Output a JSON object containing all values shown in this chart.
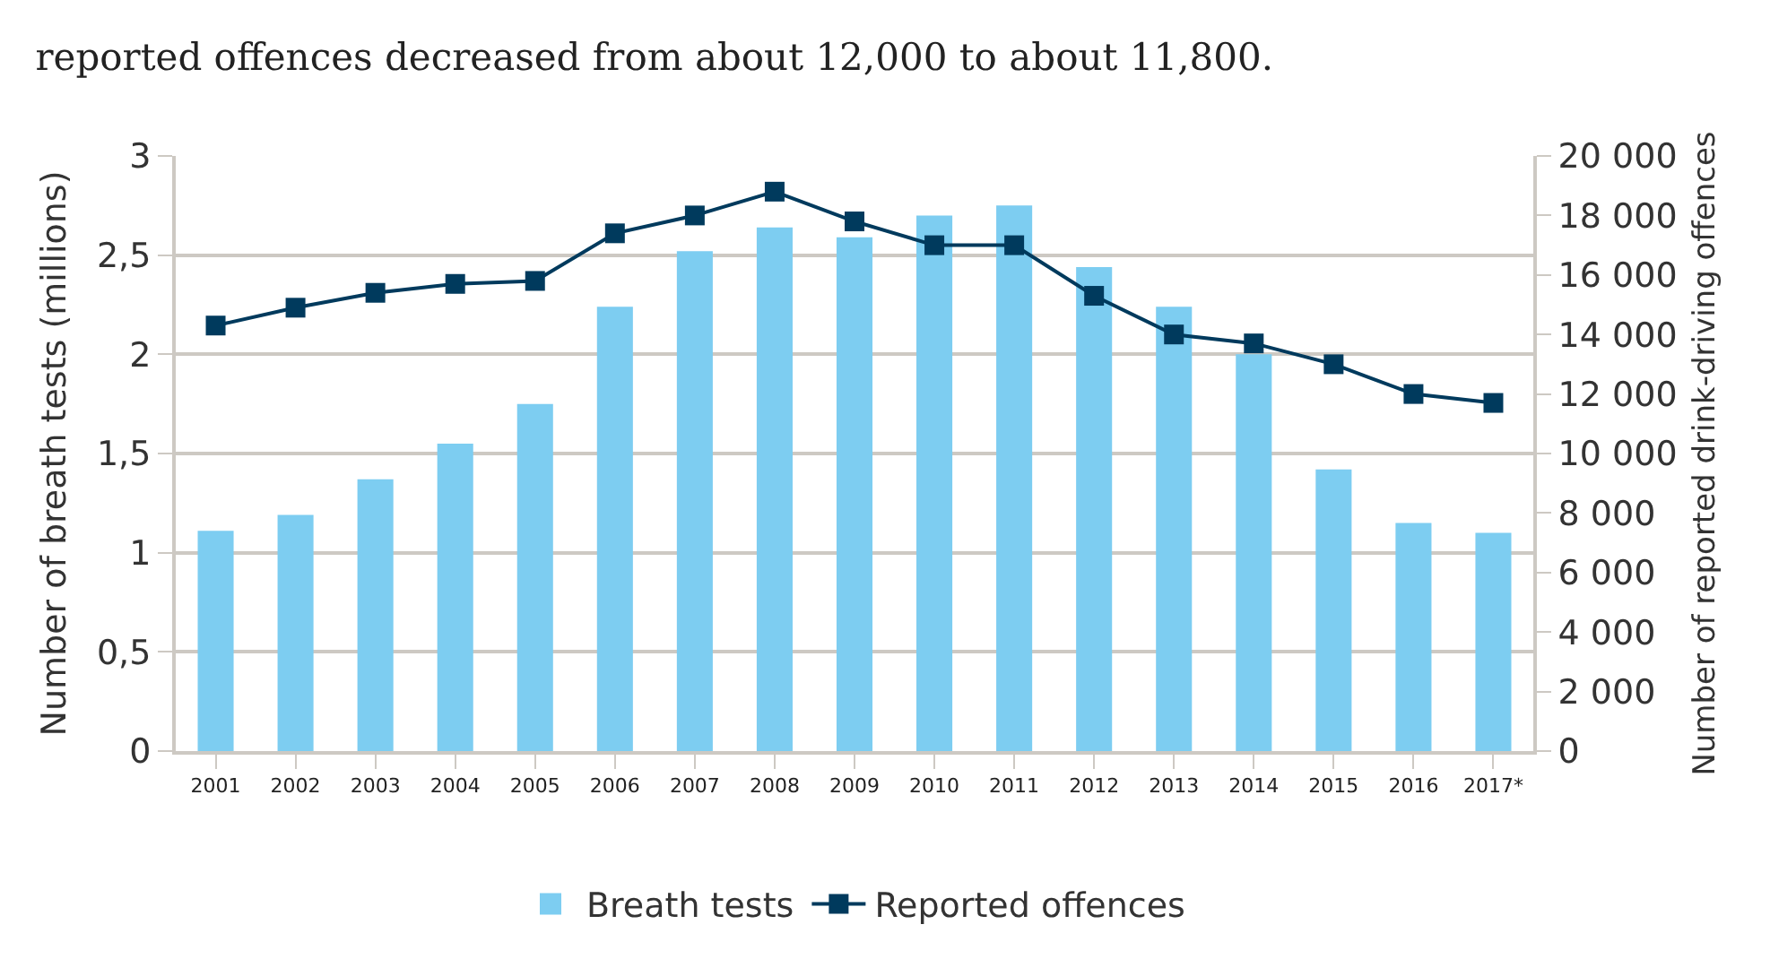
{
  "chart_data": {
    "type": "bar",
    "title": "reported offences decreased from about 12,000 to about 11,800.",
    "ylabel": "Number of breath tests (millions)",
    "y2label": "Number of reported drink-driving offences",
    "categories": [
      "2001",
      "2002",
      "2003",
      "2004",
      "2005",
      "2006",
      "2007",
      "2008",
      "2009",
      "2010",
      "2011",
      "2012",
      "2013",
      "2014",
      "2015",
      "2016",
      "2017*"
    ],
    "series": [
      {
        "name": "Breath tests",
        "color": "#7dcdf1",
        "values": [
          1.11,
          1.19,
          1.37,
          1.55,
          1.75,
          2.24,
          2.52,
          2.64,
          2.59,
          2.7,
          2.75,
          2.44,
          2.24,
          2.0,
          1.42,
          1.15,
          1.1
        ]
      },
      {
        "name": "Reported offences",
        "type": "line",
        "axis": "y2",
        "color": "#003a5d",
        "marker": "square",
        "values": [
          14300,
          14900,
          15400,
          15700,
          15800,
          17400,
          18000,
          18800,
          17800,
          17000,
          17000,
          15300,
          14000,
          13700,
          13000,
          12000,
          11700
        ]
      }
    ],
    "ylim": [
      0,
      3
    ],
    "yticks": [
      0,
      {
        "value": 0.5,
        "label": "0,5"
      },
      1,
      {
        "value": 1.5,
        "label": "1,5"
      },
      2,
      {
        "value": 2.5,
        "label": "2,5"
      },
      3
    ],
    "y2lim": [
      0,
      20000
    ],
    "y2ticks": [
      0,
      {
        "value": 2000,
        "label": "2 000"
      },
      {
        "value": 4000,
        "label": "4 000"
      },
      {
        "value": 6000,
        "label": "6 000"
      },
      {
        "value": 8000,
        "label": "8 000"
      },
      {
        "value": 10000,
        "label": "10 000"
      },
      {
        "value": 12000,
        "label": "12 000"
      },
      {
        "value": 14000,
        "label": "14 000"
      },
      {
        "value": 16000,
        "label": "16 000"
      },
      {
        "value": 18000,
        "label": "18 000"
      },
      {
        "value": 20000,
        "label": "20 000"
      }
    ],
    "grid": "y",
    "legend": "bottom"
  }
}
